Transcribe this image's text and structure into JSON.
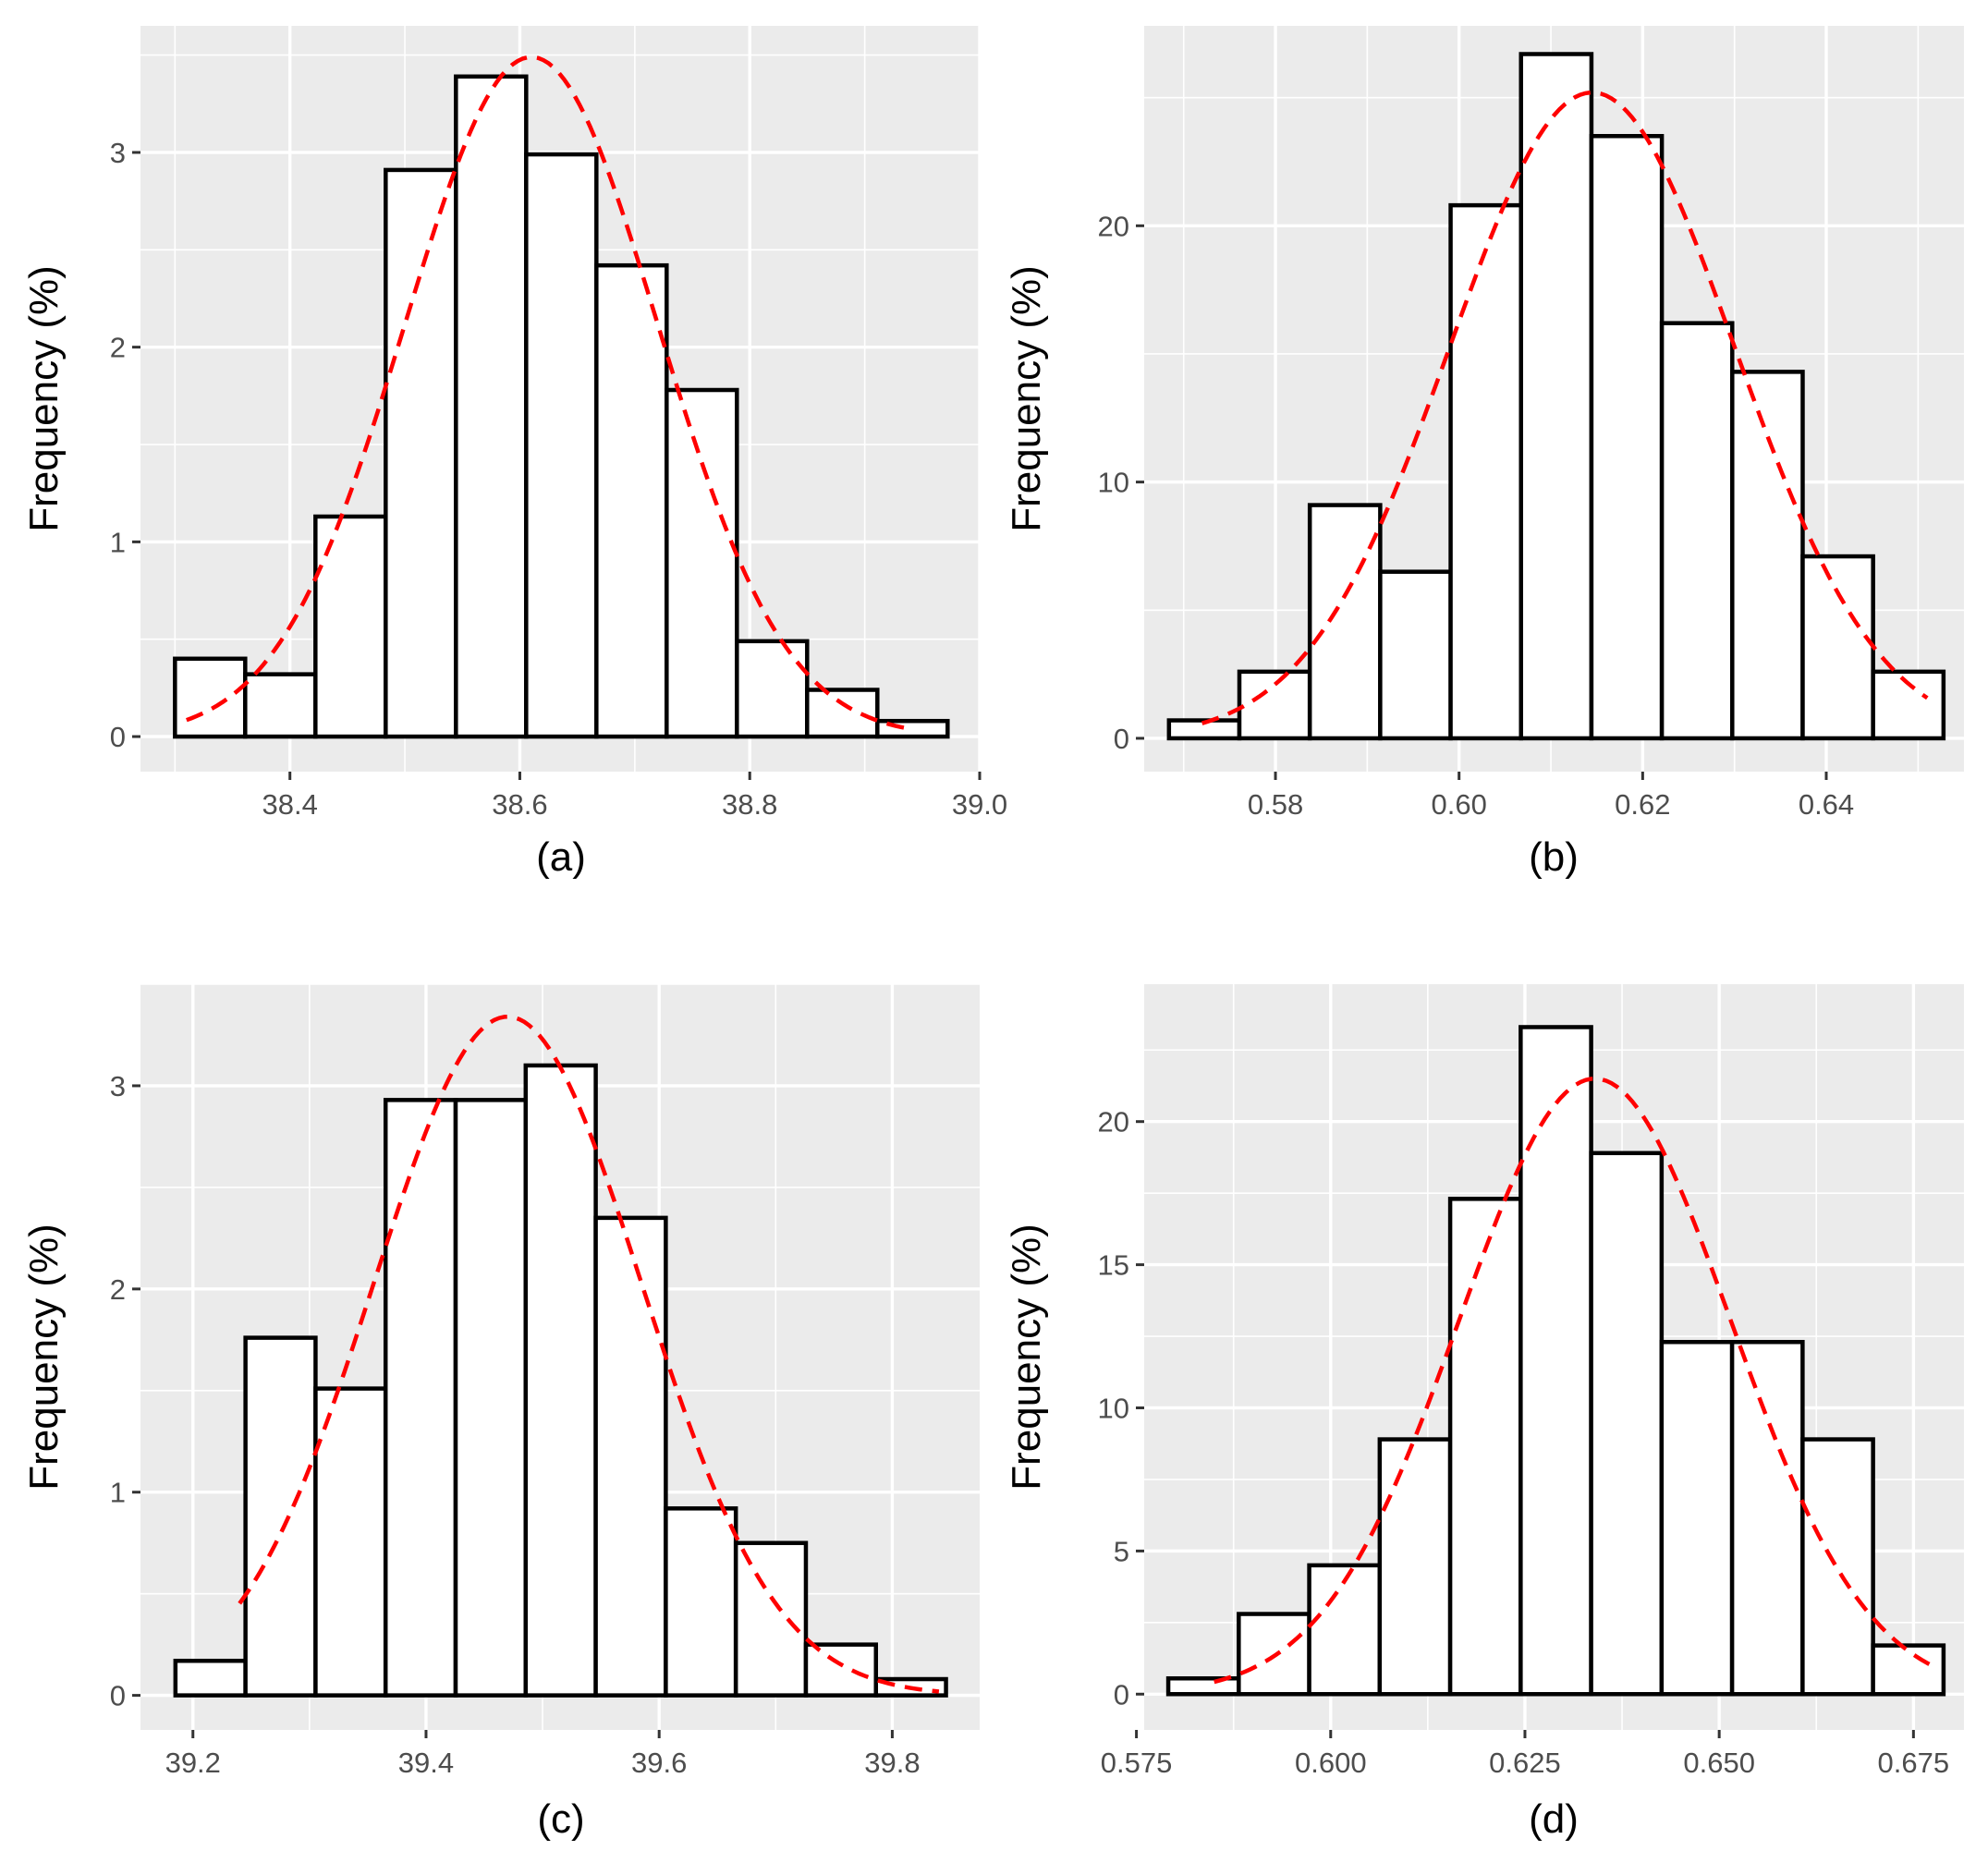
{
  "chart_data": [
    {
      "id": "a",
      "type": "bar",
      "caption": "(a)",
      "ylabel": "Frequency (%)",
      "xlim": [
        38.27,
        39.0
      ],
      "ylim": [
        -0.18,
        3.65
      ],
      "xticks": [
        {
          "v": 38.4,
          "label": "38.4"
        },
        {
          "v": 38.6,
          "label": "38.6"
        },
        {
          "v": 38.8,
          "label": "38.8"
        },
        {
          "v": 39.0,
          "label": "39.0"
        }
      ],
      "yticks": [
        {
          "v": 0,
          "label": "0"
        },
        {
          "v": 1,
          "label": "1"
        },
        {
          "v": 2,
          "label": "2"
        },
        {
          "v": 3,
          "label": "3"
        }
      ],
      "bin_start": 38.3,
      "bin_width": 0.0611,
      "values": [
        0.4,
        0.32,
        1.13,
        2.91,
        3.39,
        2.99,
        2.42,
        1.78,
        0.49,
        0.24,
        0.08
      ],
      "curve": {
        "type": "normal",
        "mean": 38.61,
        "sd": 0.11,
        "peak": 3.49,
        "x_from": 38.31,
        "x_to": 38.94,
        "color": "#ff0000",
        "style": "dashed"
      }
    },
    {
      "id": "b",
      "type": "bar",
      "caption": "(b)",
      "ylabel": "Frequency (%)",
      "xlim": [
        0.5657,
        0.655
      ],
      "ylim": [
        -1.3,
        27.8
      ],
      "xticks": [
        {
          "v": 0.58,
          "label": "0.58"
        },
        {
          "v": 0.6,
          "label": "0.60"
        },
        {
          "v": 0.62,
          "label": "0.62"
        },
        {
          "v": 0.64,
          "label": "0.64"
        }
      ],
      "yticks": [
        {
          "v": 0,
          "label": "0"
        },
        {
          "v": 10,
          "label": "10"
        },
        {
          "v": 20,
          "label": "20"
        }
      ],
      "bin_start": 0.5684,
      "bin_width": 0.00767,
      "values": [
        0.7,
        2.6,
        9.1,
        6.5,
        20.8,
        26.7,
        23.5,
        16.2,
        14.3,
        7.1,
        2.6
      ],
      "curve": {
        "type": "normal",
        "mean": 0.6145,
        "sd": 0.0155,
        "peak": 25.2,
        "x_from": 0.572,
        "x_to": 0.651,
        "color": "#ff0000",
        "style": "dashed"
      }
    },
    {
      "id": "c",
      "type": "bar",
      "caption": "(c)",
      "ylabel": "Frequency (%)",
      "xlim": [
        39.155,
        39.875
      ],
      "ylim": [
        -0.17,
        3.5
      ],
      "xticks": [
        {
          "v": 39.2,
          "label": "39.2"
        },
        {
          "v": 39.4,
          "label": "39.4"
        },
        {
          "v": 39.6,
          "label": "39.6"
        },
        {
          "v": 39.8,
          "label": "39.8"
        }
      ],
      "yticks": [
        {
          "v": 0,
          "label": "0"
        },
        {
          "v": 1,
          "label": "1"
        },
        {
          "v": 2,
          "label": "2"
        },
        {
          "v": 3,
          "label": "3"
        }
      ],
      "bin_start": 39.185,
      "bin_width": 0.0601,
      "values": [
        0.17,
        1.76,
        1.51,
        2.93,
        2.93,
        3.1,
        2.35,
        0.92,
        0.75,
        0.25,
        0.08
      ],
      "curve": {
        "type": "normal",
        "mean": 39.47,
        "sd": 0.115,
        "peak": 3.34,
        "x_from": 39.24,
        "x_to": 39.84,
        "color": "#ff0000",
        "style": "dashed"
      }
    },
    {
      "id": "d",
      "type": "bar",
      "caption": "(d)",
      "ylabel": "Frequency (%)",
      "xlim": [
        0.576,
        0.6815
      ],
      "ylim": [
        -1.25,
        24.8
      ],
      "xticks": [
        {
          "v": 0.575,
          "label": "0.575"
        },
        {
          "v": 0.6,
          "label": "0.600"
        },
        {
          "v": 0.625,
          "label": "0.625"
        },
        {
          "v": 0.65,
          "label": "0.650"
        },
        {
          "v": 0.675,
          "label": "0.675"
        }
      ],
      "yticks": [
        {
          "v": 0,
          "label": "0"
        },
        {
          "v": 5,
          "label": "5"
        },
        {
          "v": 10,
          "label": "10"
        },
        {
          "v": 15,
          "label": "15"
        },
        {
          "v": 20,
          "label": "20"
        }
      ],
      "bin_start": 0.5791,
      "bin_width": 0.00907,
      "values": [
        0.55,
        2.8,
        4.5,
        8.9,
        17.3,
        23.3,
        18.9,
        12.3,
        12.3,
        8.9,
        1.7
      ],
      "curve": {
        "type": "normal",
        "mean": 0.634,
        "sd": 0.0175,
        "peak": 21.5,
        "x_from": 0.585,
        "x_to": 0.678,
        "color": "#ff0000",
        "style": "dashed"
      }
    }
  ]
}
